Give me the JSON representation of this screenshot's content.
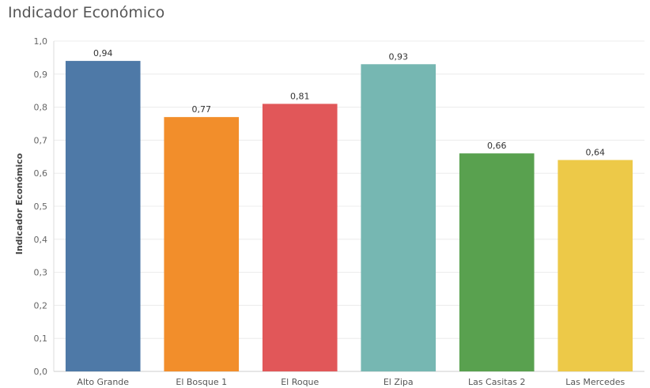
{
  "chart_data": {
    "type": "bar",
    "title": "Indicador Económico",
    "ylabel": "Indicador Económico",
    "xlabel": "",
    "categories": [
      "Alto Grande",
      "El Bosque 1",
      "El Roque",
      "El Zipa",
      "Las Casitas 2",
      "Las Mercedes"
    ],
    "values": [
      0.94,
      0.77,
      0.81,
      0.93,
      0.66,
      0.64
    ],
    "value_labels": [
      "0,94",
      "0,77",
      "0,81",
      "0,93",
      "0,66",
      "0,64"
    ],
    "colors": [
      "#4e79a7",
      "#f28e2b",
      "#e15759",
      "#76b7b2",
      "#59a14f",
      "#edc948"
    ],
    "ylim": [
      0,
      1.0
    ],
    "yticks": [
      0.0,
      0.1,
      0.2,
      0.3,
      0.4,
      0.5,
      0.6,
      0.7,
      0.8,
      0.9,
      1.0
    ],
    "ytick_labels": [
      "0,0",
      "0,1",
      "0,2",
      "0,3",
      "0,4",
      "0,5",
      "0,6",
      "0,7",
      "0,8",
      "0,9",
      "1,0"
    ],
    "grid": true,
    "legend": "none"
  }
}
